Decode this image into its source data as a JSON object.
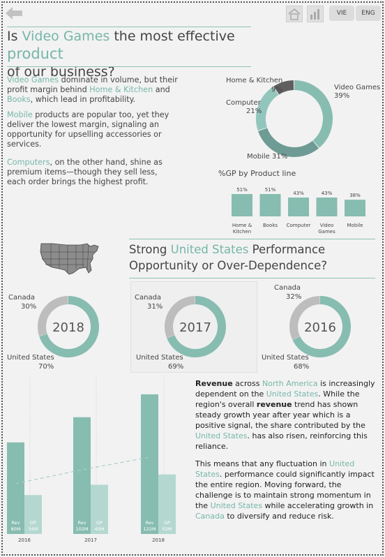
{
  "header": {
    "lang_vie": "VIE",
    "lang_eng": "ENG",
    "home_icon": "home-icon",
    "chart_icon": "chart-icon",
    "back_icon": "back-arrow-icon"
  },
  "title1": {
    "pre": "Is ",
    "hl1": "Video Games",
    "mid": " the most effective ",
    "hl2": "product",
    "post": "of our business?"
  },
  "intro": {
    "p1_hl1": "Video Games",
    "p1_t1": " dominate in volume, but their profit margin behind ",
    "p1_hl2": "Home & Kitchen",
    "p1_t2": " and ",
    "p1_hl3": "Books",
    "p1_t3": ", which lead in profitability.",
    "p2_hl1": "Mobile",
    "p2_t1": " products are popular too, yet they deliver the lowest margin, signaling an opportunity for upselling accessories or services.",
    "p3_hl1": "Computers",
    "p3_t1": ", on the other hand, shine as premium items—though they sell less, each order brings the highest profit."
  },
  "title2": {
    "pre": "Strong ",
    "hl": "United States",
    "post": " Performance",
    "line2": "Opportunity or Over-Dependence?"
  },
  "right_text": {
    "p1_b1": "Revenue",
    "p1_t1": " across ",
    "p1_hl1": "North America",
    "p1_t2": " is increasingly dependent on the ",
    "p1_hl2": "United States",
    "p1_t3": ". While the region's overall ",
    "p1_b2": "revenue",
    "p1_t4": " trend has shown steady growth year after year which is a positive signal, the share contributed by the ",
    "p1_hl3": "United States",
    "p1_t5": ". has also risen, reinforcing this reliance.",
    "p2_t1": "This means that any fluctuation in ",
    "p2_hl1": "United States",
    "p2_t2": ". performance could significantly impact the entire region. Moving forward, the challenge is to maintain strong momentum in the ",
    "p2_hl2": "United States",
    "p2_t3": " while accelerating growth in ",
    "p2_hl3": "Canada",
    "p2_t4": " to diversify and reduce risk."
  },
  "colors": {
    "teal": "#87bcb1",
    "teal_dark": "#6e9b93",
    "teal_mid": "#92c6bc",
    "teal_light": "#b4d8d0",
    "grey": "#bdbdbd",
    "dark": "#5f5f5f"
  },
  "chart_data": [
    {
      "type": "pie",
      "variant": "donut",
      "slices": [
        {
          "label": "Video Games",
          "pct_label": "39%",
          "value": 39
        },
        {
          "label": "Mobile",
          "pct_label": "31%",
          "value": 31
        },
        {
          "label": "Computer",
          "pct_label": "21%",
          "value": 21
        },
        {
          "label": "Home & Kitchen",
          "pct_label": "9%",
          "value": 9
        }
      ]
    },
    {
      "type": "bar",
      "title": "%GP by Product line",
      "categories": [
        "Home & Kitchen",
        "Books",
        "Computer",
        "Video Games",
        "Mobile"
      ],
      "category_lines": [
        [
          "Home &",
          "Kitchen"
        ],
        [
          "Books"
        ],
        [
          "Computer"
        ],
        [
          "Video",
          "Games"
        ],
        [
          "Mobile"
        ]
      ],
      "values": [
        51,
        51,
        43,
        43,
        38
      ],
      "value_labels": [
        "51%",
        "51%",
        "43%",
        "43%",
        "38%"
      ],
      "ylim": [
        0,
        55
      ]
    },
    {
      "type": "pie",
      "variant": "donut",
      "center_label": "2018",
      "slices": [
        {
          "label": "United States",
          "pct_label": "70%",
          "value": 70
        },
        {
          "label": "Canada",
          "pct_label": "30%",
          "value": 30
        }
      ]
    },
    {
      "type": "pie",
      "variant": "donut",
      "center_label": "2017",
      "slices": [
        {
          "label": "United States",
          "pct_label": "69%",
          "value": 69
        },
        {
          "label": "Canada",
          "pct_label": "31%",
          "value": 31
        }
      ]
    },
    {
      "type": "pie",
      "variant": "donut",
      "center_label": "2016",
      "slices": [
        {
          "label": "United States",
          "pct_label": "68%",
          "value": 68
        },
        {
          "label": "Canada",
          "pct_label": "32%",
          "value": 32
        }
      ]
    },
    {
      "type": "bar",
      "categories": [
        "2016",
        "2017",
        "2018"
      ],
      "series": [
        {
          "name": "Rev",
          "values": [
            80,
            102,
            122
          ],
          "value_labels": [
            "80M",
            "102M",
            "122M"
          ]
        },
        {
          "name": "GP",
          "values": [
            34,
            43,
            52
          ],
          "value_labels": [
            "34M",
            "43M",
            "52M"
          ]
        }
      ],
      "ylim": [
        0,
        125
      ]
    }
  ]
}
